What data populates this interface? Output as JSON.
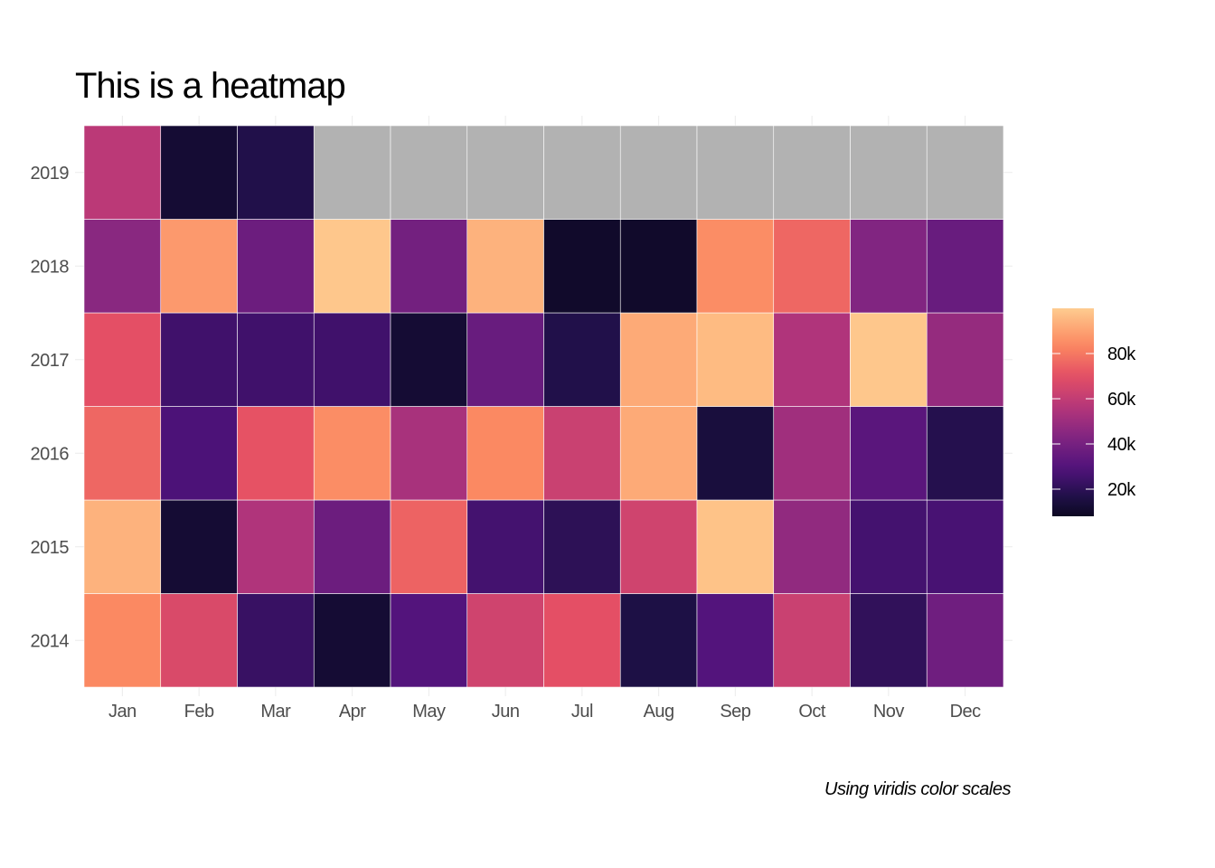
{
  "chart_data": {
    "type": "heatmap",
    "title": "This is a heatmap",
    "caption": "Using viridis color scales",
    "x_categories": [
      "Jan",
      "Feb",
      "Mar",
      "Apr",
      "May",
      "Jun",
      "Jul",
      "Aug",
      "Sep",
      "Oct",
      "Nov",
      "Dec"
    ],
    "y_categories": [
      "2014",
      "2015",
      "2016",
      "2017",
      "2018",
      "2019"
    ],
    "values": {
      "2019": [
        58000,
        12000,
        17000,
        null,
        null,
        null,
        null,
        null,
        null,
        null,
        null,
        null
      ],
      "2018": [
        45000,
        88000,
        37000,
        99000,
        39000,
        94000,
        10000,
        10000,
        85000,
        76000,
        43000,
        36000
      ],
      "2017": [
        70000,
        25000,
        25000,
        25000,
        12000,
        36000,
        17000,
        92000,
        96000,
        55000,
        99000,
        48000
      ],
      "2016": [
        76000,
        28000,
        71000,
        85000,
        53000,
        84000,
        62000,
        92000,
        14000,
        51000,
        32000,
        18000
      ],
      "2015": [
        94000,
        12000,
        55000,
        37000,
        75000,
        26000,
        20000,
        64000,
        98000,
        47000,
        26000,
        27000
      ],
      "2014": [
        84000,
        67000,
        23000,
        12000,
        30000,
        64000,
        70000,
        16000,
        30000,
        62000,
        21000,
        38000
      ]
    },
    "value_range": [
      8000,
      100000
    ],
    "missing_color": "#b2b2b2",
    "tile_border_color": "#ffffff",
    "colormap": "magma",
    "colorbar": {
      "ticks": [
        20000,
        40000,
        60000,
        80000
      ],
      "labels": [
        "20k",
        "40k",
        "60k",
        "80k"
      ]
    },
    "legend_position": "right",
    "grid": true
  }
}
